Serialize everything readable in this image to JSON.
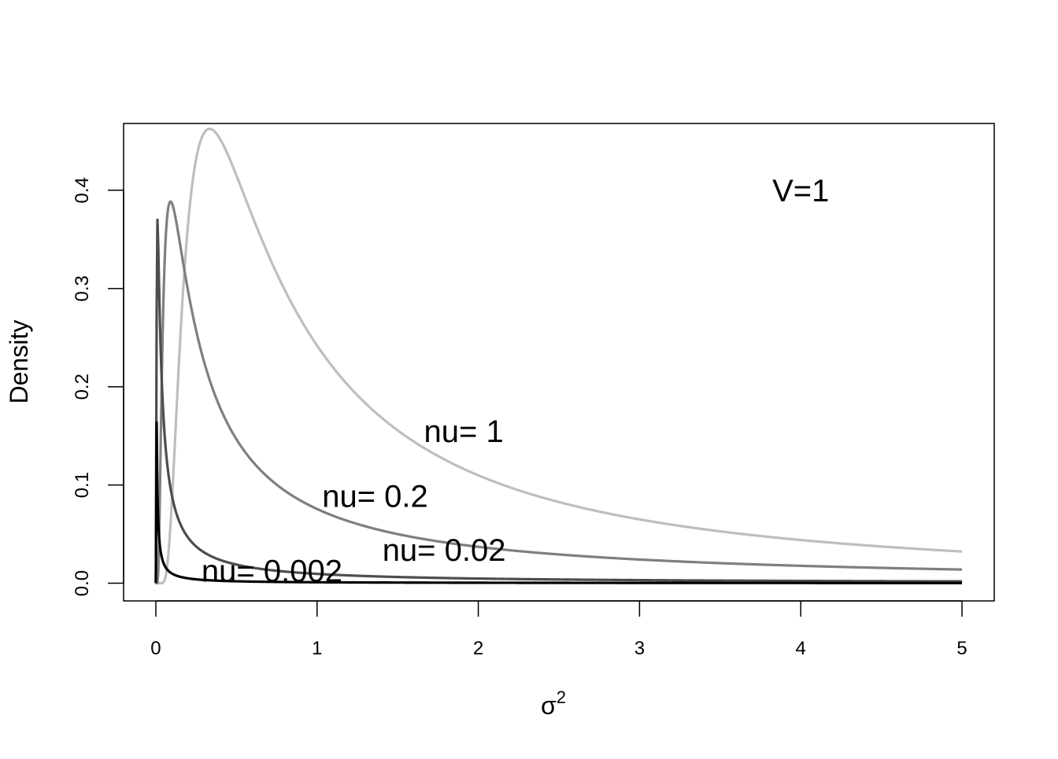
{
  "chart_data": {
    "type": "line",
    "title": "",
    "xlabel": "σ",
    "xlabel_superscript": "2",
    "ylabel": "Density",
    "xlim": [
      -0.2,
      5.2
    ],
    "ylim": [
      -0.018,
      0.468
    ],
    "x_range": [
      0,
      5
    ],
    "xticks": [
      "0",
      "1",
      "2",
      "3",
      "4",
      "5"
    ],
    "xtick_values": [
      0,
      1,
      2,
      3,
      4,
      5
    ],
    "yticks": [
      "0.0",
      "0.1",
      "0.2",
      "0.3",
      "0.4"
    ],
    "ytick_values": [
      0,
      0.1,
      0.2,
      0.3,
      0.4
    ],
    "grid": false,
    "distribution": "inverse-gamma density of σ² with shape nu/2 and scale nu·V/2",
    "series": [
      {
        "name": "nu= 1",
        "nu": 1,
        "V": 1,
        "color": "#bebebe",
        "peak": [
          0.333,
          0.462
        ],
        "label_at": [
          1.91,
          0.155
        ]
      },
      {
        "name": "nu= 0.2",
        "nu": 0.2,
        "V": 1,
        "color": "#7f7f7f",
        "peak": [
          0.09,
          0.389
        ],
        "label_at": [
          1.36,
          0.089
        ]
      },
      {
        "name": "nu= 0.02",
        "nu": 0.02,
        "V": 1,
        "color": "#4d4d4d",
        "peak": [
          0.01,
          0.37
        ],
        "label_at": [
          0.86,
          0.034
        ]
      },
      {
        "name": "nu= 0.002",
        "nu": 0.002,
        "V": 1,
        "color": "#000000",
        "peak": [
          0.005,
          0.163
        ],
        "label_at": [
          0.72,
          0.013
        ]
      }
    ],
    "annotations": [
      {
        "text": "V=1",
        "x": 4.0,
        "y": 0.4
      }
    ]
  }
}
